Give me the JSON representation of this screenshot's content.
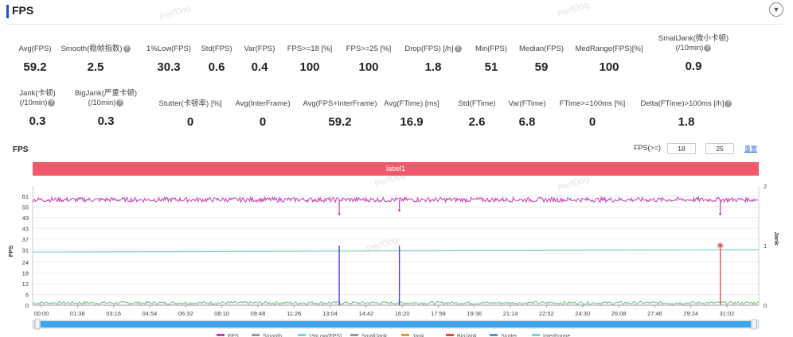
{
  "header": {
    "title": "FPS",
    "collapse_icon": "chevron-down-icon"
  },
  "watermark": "PerfDog",
  "stats_row1": [
    {
      "label": "Avg(FPS)",
      "value": "59.2",
      "help": false
    },
    {
      "label": "Smooth(稳帧指数)",
      "value": "2.5",
      "help": true
    },
    {
      "label": "1%Low(FPS)",
      "value": "30.3",
      "help": false
    },
    {
      "label": "Std(FPS)",
      "value": "0.6",
      "help": false
    },
    {
      "label": "Var(FPS)",
      "value": "0.4",
      "help": false
    },
    {
      "label": "FPS>=18 [%]",
      "value": "100",
      "help": false
    },
    {
      "label": "FPS>=25 [%]",
      "value": "100",
      "help": false
    },
    {
      "label": "Drop(FPS) [/h]",
      "value": "1.8",
      "help": true
    },
    {
      "label": "Min(FPS)",
      "value": "51",
      "help": false
    },
    {
      "label": "Median(FPS)",
      "value": "59",
      "help": false
    },
    {
      "label": "MedRange(FPS)[%]",
      "value": "100",
      "help": false
    },
    {
      "label": "SmallJank(微小卡顿)",
      "label2": "(/10min)",
      "value": "0.9",
      "help": true
    }
  ],
  "stats_row2": [
    {
      "label": "Jank(卡顿)",
      "label2": "(/10min)",
      "value": "0.3",
      "help": true
    },
    {
      "label": "BigJank(严重卡顿)",
      "label2": "(/10min)",
      "value": "0.3",
      "help": true
    },
    {
      "label": "Stutter(卡顿率) [%]",
      "value": "0",
      "help": false
    },
    {
      "label": "Avg(InterFrame)",
      "value": "0",
      "help": false
    },
    {
      "label": "Avg(FPS+InterFrame)",
      "value": "59.2",
      "help": false
    },
    {
      "label": "Avg(FTime) [ms]",
      "value": "16.9",
      "help": false
    },
    {
      "label": "Std(FTime)",
      "value": "2.6",
      "help": false
    },
    {
      "label": "Var(FTime)",
      "value": "6.8",
      "help": false
    },
    {
      "label": "FTime>=100ms [%]",
      "value": "0",
      "help": false
    },
    {
      "label": "Delta(FTime)>100ms [/h]",
      "value": "1.8",
      "help": true
    }
  ],
  "chart_header": {
    "title": "FPS",
    "filter_label": "FPS(>=)",
    "filter_low": "18",
    "filter_high": "25",
    "reset_label": "重置"
  },
  "label_band": "label1",
  "chart_data": {
    "type": "line",
    "ylabel": "FPS",
    "y2label": "Jank",
    "yticks": [
      0,
      6,
      12,
      18,
      24,
      31,
      37,
      43,
      49,
      55,
      61
    ],
    "y2ticks": [
      0,
      1,
      2
    ],
    "ylim": [
      0,
      64
    ],
    "y2lim": [
      0,
      2
    ],
    "x_ticks": [
      "00:00",
      "01:38",
      "03:16",
      "04:54",
      "06:32",
      "08:10",
      "09:48",
      "11:26",
      "13:04",
      "14:42",
      "16:20",
      "17:58",
      "19:36",
      "21:14",
      "22:52",
      "24:30",
      "26:08",
      "27:46",
      "29:24",
      "31:02"
    ],
    "x_range_sec": [
      0,
      1980
    ],
    "series": [
      {
        "name": "FPS",
        "color": "#c040b8",
        "baseline": 59,
        "noise": 1.3,
        "dips": [
          {
            "t": 836,
            "v": 51
          },
          {
            "t": 1000,
            "v": 53
          },
          {
            "t": 1875,
            "v": 51
          }
        ]
      },
      {
        "name": "InterFrame",
        "color": "#7fd0d6",
        "start": 29.7,
        "end": 31.0
      },
      {
        "name": "FTime(ms)",
        "color": "#5bb86a",
        "baseline": 1.3,
        "noise": 0.8
      },
      {
        "name": "BigJank",
        "color": "#e04a4a",
        "events": [
          {
            "t": 1875,
            "v": 1
          }
        ]
      },
      {
        "name": "Jank",
        "color": "#3a3ae0",
        "events": [
          {
            "t": 836,
            "v": 1
          },
          {
            "t": 1000,
            "v": 1
          }
        ]
      }
    ],
    "legend": [
      "FPS",
      "Smooth",
      "1%Low(FPS)",
      "SmallJank",
      "Jank",
      "BigJank",
      "Stutter",
      "InterFrame"
    ],
    "legend_colors": [
      "#c040b8",
      "#9a9a9a",
      "#7fd0d6",
      "#9a9a9a",
      "#e0a030",
      "#e04a4a",
      "#5b8bd6",
      "#7fd0d6"
    ]
  }
}
